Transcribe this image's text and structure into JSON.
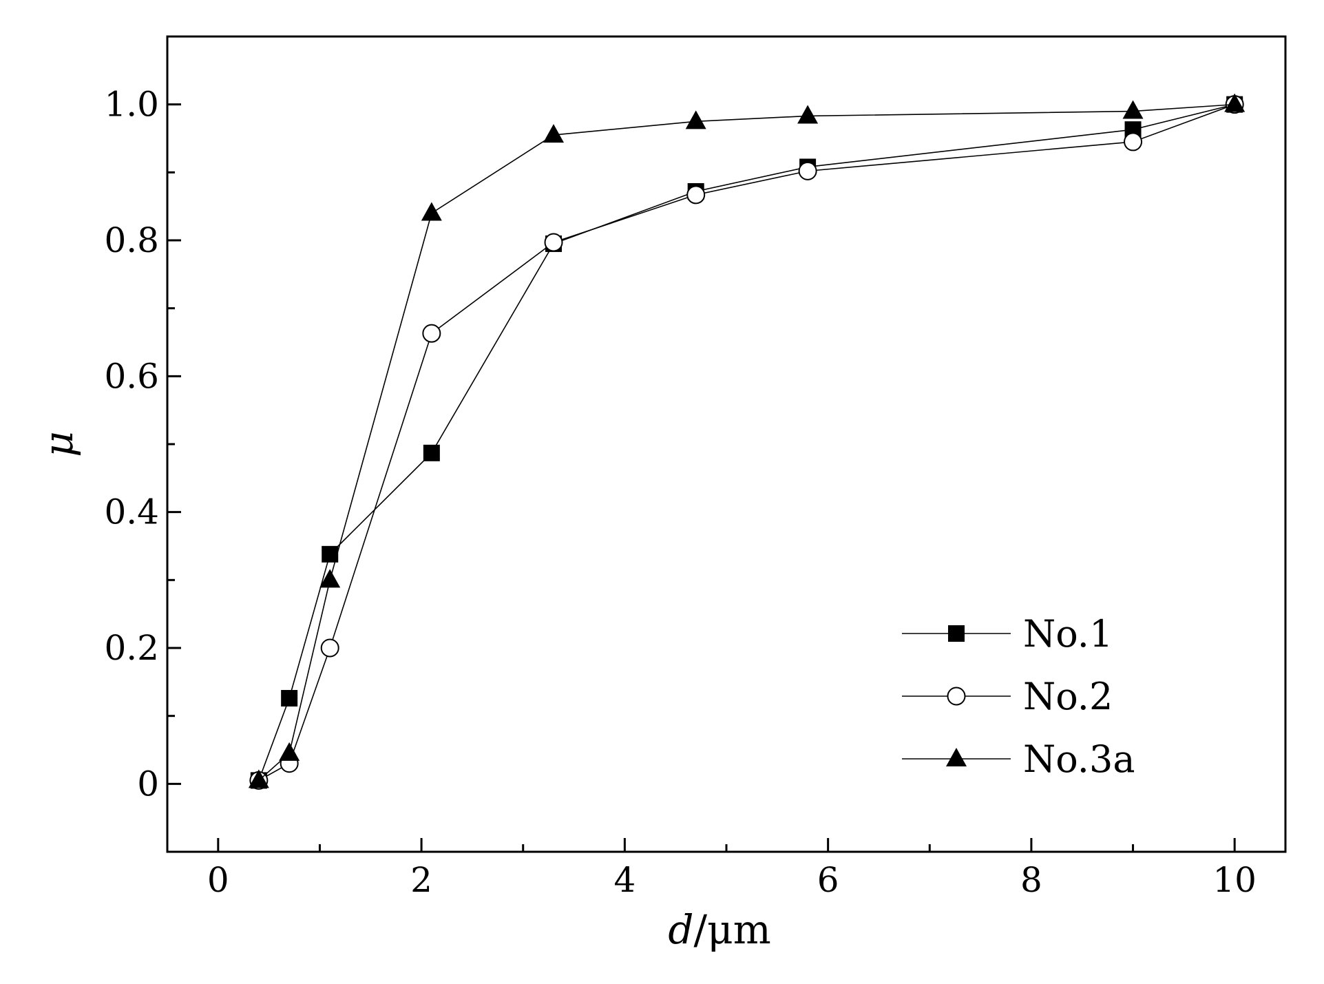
{
  "chart_data": {
    "type": "line",
    "title": "",
    "xlabel_italic": "d",
    "xlabel_unit": "/μm",
    "ylabel": "μ",
    "xlim": [
      -0.5,
      10.5
    ],
    "ylim": [
      -0.1,
      1.1
    ],
    "xticks": [
      0,
      2,
      4,
      6,
      8,
      10
    ],
    "xtick_labels": [
      "0",
      "2",
      "4",
      "6",
      "8",
      "10"
    ],
    "xminor": [
      1,
      3,
      5,
      7,
      9
    ],
    "yticks": [
      0,
      0.2,
      0.4,
      0.6,
      0.8,
      1.0
    ],
    "ytick_labels": [
      "0",
      "0.2",
      "0.4",
      "0.6",
      "0.8",
      "1.0"
    ],
    "yminor": [
      0.1,
      0.3,
      0.5,
      0.7,
      0.9
    ],
    "grid": false,
    "legend_position": "bottom-right",
    "series": [
      {
        "name": "No.1",
        "marker": "square-filled",
        "x": [
          0.4,
          0.7,
          1.1,
          2.1,
          3.3,
          4.7,
          5.8,
          9.0,
          10.0
        ],
        "y": [
          0.005,
          0.126,
          0.338,
          0.487,
          0.795,
          0.872,
          0.908,
          0.963,
          1.0
        ]
      },
      {
        "name": "No.2",
        "marker": "circle-open",
        "x": [
          0.4,
          0.7,
          1.1,
          2.1,
          3.3,
          4.7,
          5.8,
          9.0,
          10.0
        ],
        "y": [
          0.005,
          0.03,
          0.2,
          0.663,
          0.797,
          0.867,
          0.902,
          0.945,
          1.0
        ]
      },
      {
        "name": "No.3a",
        "marker": "triangle-filled",
        "x": [
          0.4,
          0.7,
          1.1,
          2.1,
          3.3,
          4.7,
          5.8,
          9.0,
          10.0
        ],
        "y": [
          0.005,
          0.045,
          0.3,
          0.84,
          0.955,
          0.975,
          0.983,
          0.99,
          1.0
        ]
      }
    ]
  }
}
